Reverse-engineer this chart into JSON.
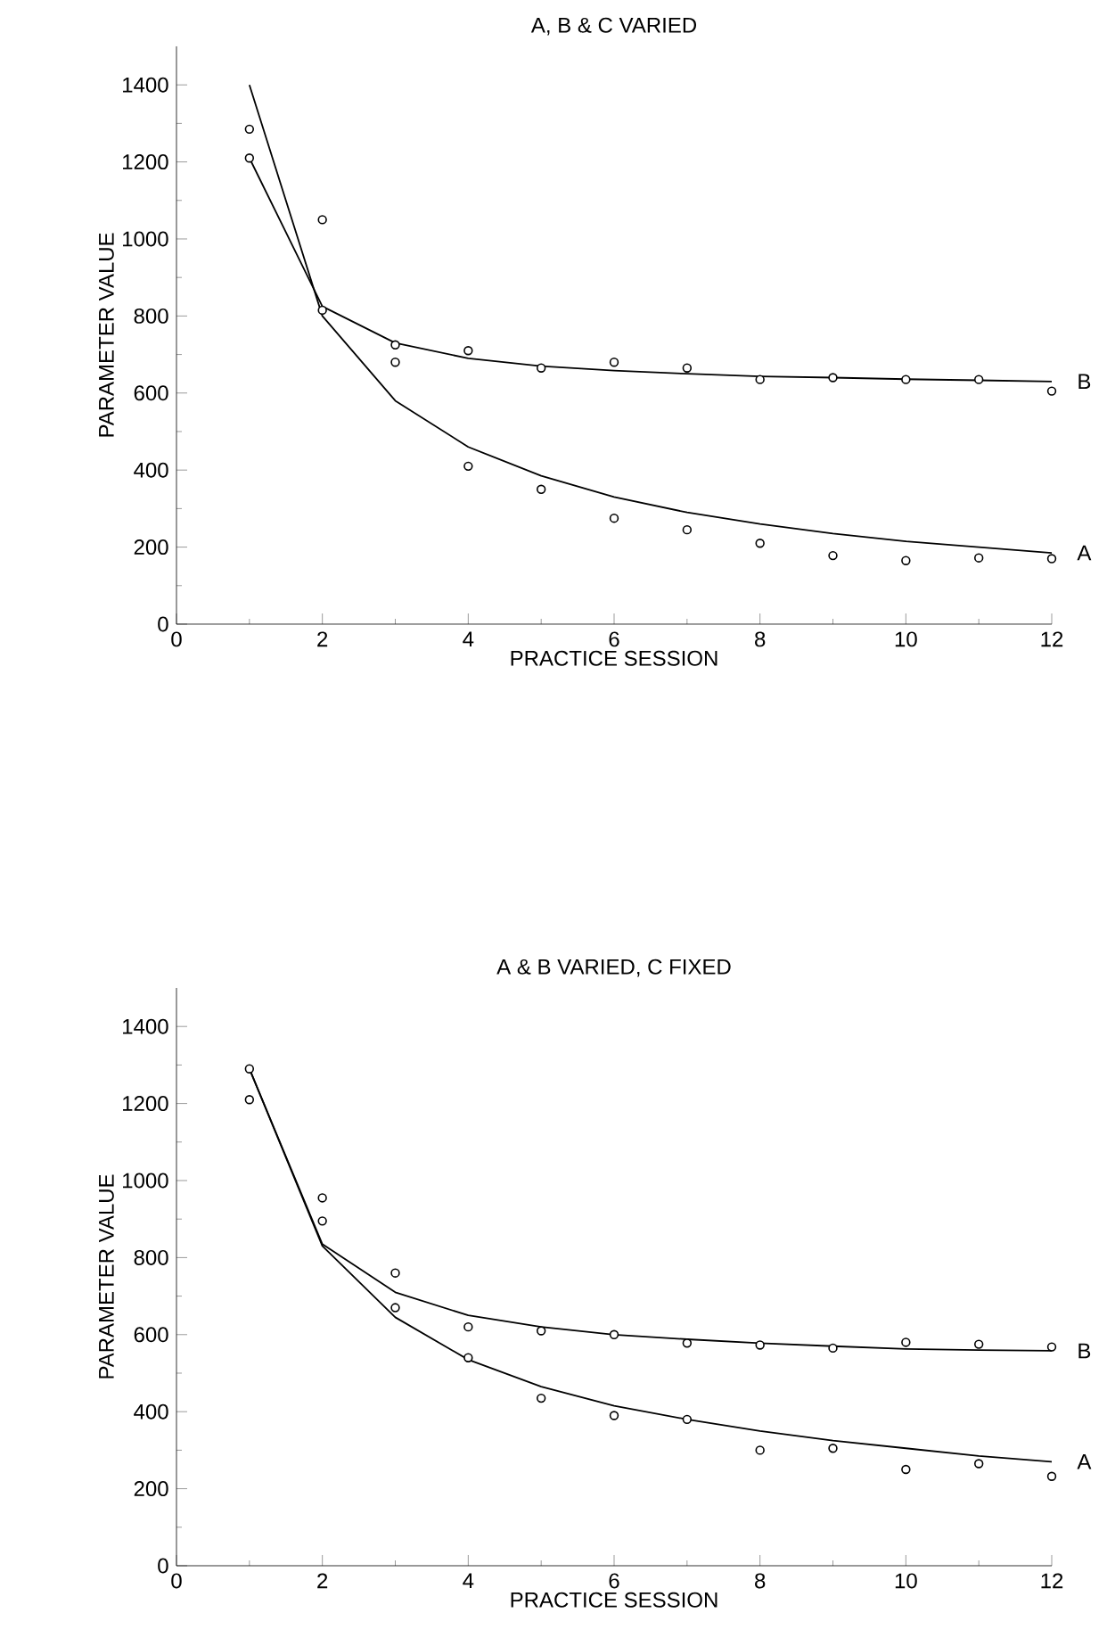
{
  "chart_data": [
    {
      "type": "scatter",
      "title": "A, B & C VARIED",
      "xlabel": "PRACTICE SESSION",
      "ylabel": "PARAMETER VALUE",
      "x": [
        1,
        2,
        3,
        4,
        5,
        6,
        7,
        8,
        9,
        10,
        11,
        12
      ],
      "xlim": [
        0,
        12
      ],
      "ylim": [
        0,
        1500
      ],
      "xticks": [
        0,
        2,
        4,
        6,
        8,
        10,
        12
      ],
      "yticks": [
        0,
        200,
        400,
        600,
        800,
        1000,
        1200,
        1400
      ],
      "grid": false,
      "series": [
        {
          "color": "#000000",
          "marker": "circle",
          "values": [
            1285,
            1050,
            680,
            410,
            350,
            275,
            245,
            210,
            178,
            165,
            172,
            170
          ]
        },
        {
          "type": "line",
          "name": "A",
          "color": "#000000",
          "marker": "none",
          "line_style": "solid",
          "values": [
            1400,
            800,
            580,
            460,
            385,
            330,
            290,
            260,
            235,
            215,
            200,
            185
          ]
        },
        {
          "color": "#000000",
          "marker": "circle",
          "values": [
            1210,
            815,
            725,
            710,
            665,
            680,
            665,
            635,
            640,
            635,
            635,
            605
          ]
        },
        {
          "type": "line",
          "name": "B",
          "color": "#000000",
          "marker": "none",
          "line_style": "solid",
          "values": [
            1210,
            825,
            730,
            690,
            670,
            658,
            650,
            643,
            640,
            636,
            633,
            630
          ]
        }
      ]
    },
    {
      "type": "scatter",
      "title": "A & B VARIED, C FIXED",
      "xlabel": "PRACTICE SESSION",
      "ylabel": "PARAMETER VALUE",
      "x": [
        1,
        2,
        3,
        4,
        5,
        6,
        7,
        8,
        9,
        10,
        11,
        12
      ],
      "xlim": [
        0,
        12
      ],
      "ylim": [
        0,
        1500
      ],
      "xticks": [
        0,
        2,
        4,
        6,
        8,
        10,
        12
      ],
      "yticks": [
        0,
        200,
        400,
        600,
        800,
        1000,
        1200,
        1400
      ],
      "grid": false,
      "series": [
        {
          "color": "#000000",
          "marker": "circle",
          "values": [
            1210,
            955,
            760,
            540,
            435,
            390,
            380,
            300,
            305,
            250,
            265,
            232
          ]
        },
        {
          "type": "line",
          "name": "A",
          "color": "#000000",
          "marker": "none",
          "line_style": "solid",
          "values": [
            1290,
            830,
            645,
            535,
            465,
            415,
            380,
            350,
            325,
            305,
            285,
            270
          ]
        },
        {
          "color": "#000000",
          "marker": "circle",
          "values": [
            1290,
            895,
            670,
            620,
            610,
            600,
            578,
            573,
            565,
            580,
            575,
            568
          ]
        },
        {
          "type": "line",
          "name": "B",
          "color": "#000000",
          "marker": "none",
          "line_style": "solid",
          "values": [
            1290,
            835,
            710,
            650,
            620,
            600,
            588,
            578,
            570,
            563,
            560,
            558
          ]
        }
      ]
    }
  ]
}
